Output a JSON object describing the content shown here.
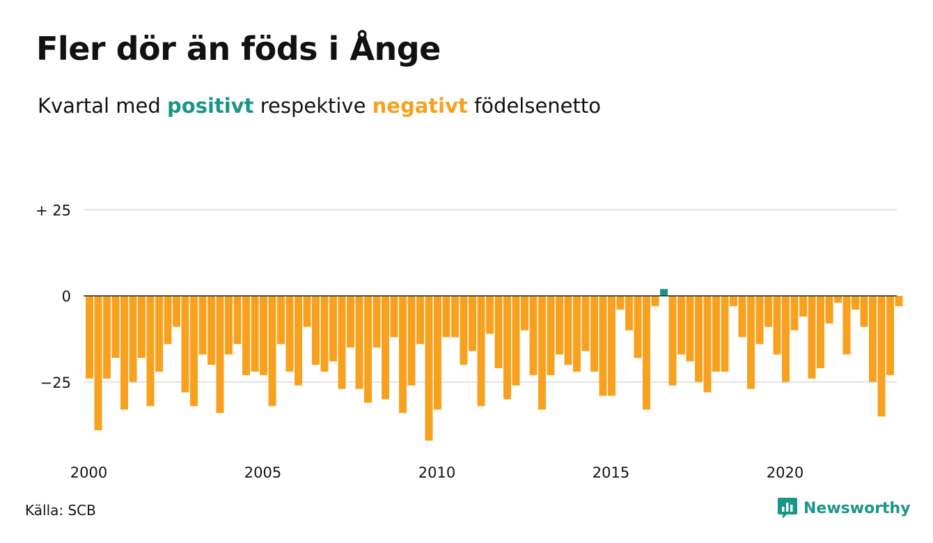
{
  "title": "Fler dör än föds i Ånge",
  "subtitle": {
    "part1": "Kvartal med ",
    "positive": "positivt",
    "part2": " respektive ",
    "negative": "negativt",
    "part3": " födelsenetto"
  },
  "colors": {
    "positive": "#1a9688",
    "negative": "#f7a11e",
    "grid": "#e2e2e2",
    "zero_line": "#222222",
    "text": "#111111"
  },
  "source": "Källa: SCB",
  "brand": {
    "name": "Newsworthy",
    "icon": "newsworthy-logo-icon"
  },
  "chart_data": {
    "type": "bar",
    "x_start": "2000 Q1",
    "x_unit": "quarter",
    "ylim": [
      -43,
      25
    ],
    "yticks": [
      {
        "value": 25,
        "label": "+ 25"
      },
      {
        "value": 0,
        "label": "0"
      },
      {
        "value": -25,
        "label": "−25"
      }
    ],
    "xticks": [
      {
        "label": "2000",
        "value": "2000 Q1"
      },
      {
        "label": "2005",
        "value": "2005 Q1"
      },
      {
        "label": "2010",
        "value": "2010 Q1"
      },
      {
        "label": "2015",
        "value": "2015 Q1"
      },
      {
        "label": "2020",
        "value": "2020 Q1"
      }
    ],
    "grid": true,
    "values": [
      -24,
      -39,
      -24,
      -18,
      -33,
      -25,
      -18,
      -32,
      -22,
      -14,
      -9,
      -28,
      -32,
      -17,
      -20,
      -34,
      -17,
      -14,
      -23,
      -22,
      -23,
      -32,
      -14,
      -22,
      -26,
      -9,
      -20,
      -22,
      -19,
      -27,
      -15,
      -27,
      -31,
      -15,
      -30,
      -12,
      -34,
      -26,
      -14,
      -42,
      -33,
      -12,
      -12,
      -20,
      -16,
      -32,
      -11,
      -21,
      -30,
      -26,
      -10,
      -23,
      -33,
      -23,
      -17,
      -20,
      -22,
      -16,
      -22,
      -29,
      -29,
      -4,
      -10,
      -18,
      -33,
      -3,
      2,
      -26,
      -17,
      -19,
      -25,
      -28,
      -22,
      -22,
      -3,
      -12,
      -27,
      -14,
      -9,
      -17,
      -25,
      -10,
      -6,
      -24,
      -21,
      -8,
      -2,
      -17,
      -4,
      -9,
      -25,
      -35,
      -23,
      -3
    ]
  }
}
